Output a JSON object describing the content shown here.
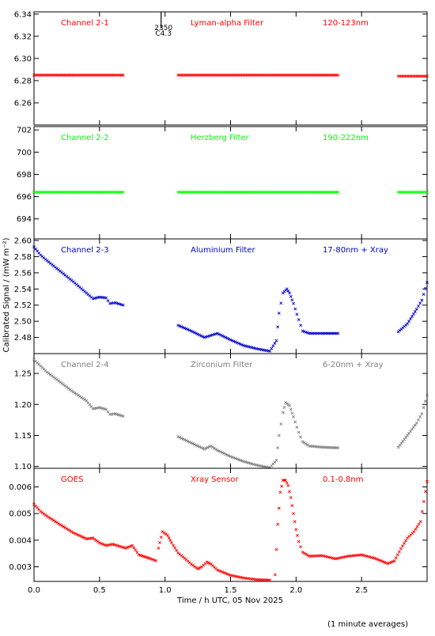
{
  "chart_data": {
    "type": "scatter",
    "xlabel": "Time / h UTC, 05 Nov 2025",
    "ylabel": "Calibrated Signal / (mW m⁻²)",
    "footnote": "(1 minute averages)",
    "xlim": [
      0,
      3.0
    ],
    "xticks": [
      "0.0",
      "0.5",
      "1.0",
      "1.5",
      "2.0",
      "2.5"
    ],
    "top_marker": {
      "x": 0.97,
      "label1": "2350",
      "label2": "C4.3"
    },
    "panels": [
      {
        "channel": "Channel 2-1",
        "filter": "Lyman-alpha Filter",
        "band": "120-123nm",
        "color": "#ff0000",
        "ylim": [
          6.24,
          6.342
        ],
        "yticks": [
          "6.26",
          "6.28",
          "6.30",
          "6.32",
          "6.34"
        ],
        "segments": [
          {
            "x": [
              0.0,
              0.68
            ],
            "y": [
              6.285,
              6.285
            ]
          },
          {
            "x": [
              1.1,
              2.32
            ],
            "y": [
              6.285,
              6.285
            ]
          },
          {
            "x": [
              2.78,
              3.0
            ],
            "y": [
              6.284,
              6.284
            ]
          }
        ]
      },
      {
        "channel": "Channel 2-2",
        "filter": "Herzberg Filter",
        "band": "190-222nm",
        "color": "#00ff00",
        "ylim": [
          692.2,
          702.3
        ],
        "yticks": [
          "694",
          "696",
          "698",
          "700",
          "702"
        ],
        "segments": [
          {
            "x": [
              0.0,
              0.68
            ],
            "y": [
              696.4,
              696.4
            ]
          },
          {
            "x": [
              1.1,
              2.32
            ],
            "y": [
              696.4,
              696.4
            ]
          },
          {
            "x": [
              2.78,
              3.0
            ],
            "y": [
              696.4,
              696.4
            ]
          }
        ]
      },
      {
        "channel": "Channel 2-3",
        "filter": "Aluminium Filter",
        "band": "17-80nm + Xray",
        "color": "#0000cc",
        "ylim": [
          2.46,
          2.602
        ],
        "yticks": [
          "2.48",
          "2.50",
          "2.52",
          "2.54",
          "2.56",
          "2.58",
          "2.60"
        ],
        "segments": [
          {
            "x": [
              0.0,
              0.05,
              0.1,
              0.2,
              0.3,
              0.4,
              0.45,
              0.5,
              0.55,
              0.58,
              0.62,
              0.68
            ],
            "y": [
              2.592,
              2.582,
              2.575,
              2.562,
              2.549,
              2.535,
              2.528,
              2.53,
              2.529,
              2.522,
              2.523,
              2.52
            ]
          },
          {
            "x": [
              1.1,
              1.2,
              1.3,
              1.4,
              1.5,
              1.6,
              1.7,
              1.8,
              1.85,
              1.87,
              1.9,
              1.93,
              1.95,
              1.98,
              2.02,
              2.05,
              2.1,
              2.2,
              2.32
            ],
            "y": [
              2.495,
              2.488,
              2.48,
              2.485,
              2.477,
              2.47,
              2.466,
              2.463,
              2.476,
              2.51,
              2.535,
              2.54,
              2.535,
              2.522,
              2.502,
              2.488,
              2.485,
              2.485,
              2.485
            ]
          },
          {
            "x": [
              2.78,
              2.85,
              2.92,
              2.96,
              3.0
            ],
            "y": [
              2.487,
              2.497,
              2.515,
              2.526,
              2.548
            ]
          }
        ]
      },
      {
        "channel": "Channel 2-4",
        "filter": "Zirconium Filter",
        "band": "6-20nm + Xray",
        "color": "#7f7f7f",
        "ylim": [
          1.097,
          1.282
        ],
        "yticks": [
          "1.10",
          "1.15",
          "1.20",
          "1.25"
        ],
        "segments": [
          {
            "x": [
              0.0,
              0.05,
              0.1,
              0.2,
              0.3,
              0.4,
              0.45,
              0.5,
              0.55,
              0.58,
              0.62,
              0.68
            ],
            "y": [
              1.272,
              1.262,
              1.252,
              1.236,
              1.22,
              1.206,
              1.193,
              1.195,
              1.192,
              1.184,
              1.185,
              1.181
            ]
          },
          {
            "x": [
              1.1,
              1.2,
              1.3,
              1.35,
              1.4,
              1.5,
              1.6,
              1.7,
              1.8,
              1.85,
              1.87,
              1.9,
              1.92,
              1.95,
              1.98,
              2.02,
              2.05,
              2.1,
              2.2,
              2.32
            ],
            "y": [
              1.148,
              1.138,
              1.128,
              1.133,
              1.126,
              1.116,
              1.108,
              1.102,
              1.098,
              1.11,
              1.15,
              1.187,
              1.203,
              1.198,
              1.18,
              1.155,
              1.14,
              1.133,
              1.131,
              1.13
            ]
          },
          {
            "x": [
              2.78,
              2.85,
              2.92,
              2.96,
              3.0
            ],
            "y": [
              1.131,
              1.15,
              1.17,
              1.185,
              1.215
            ]
          }
        ]
      },
      {
        "channel": "GOES",
        "filter": "Xray Sensor",
        "band": "0.1-0.8nm",
        "color": "#ff0000",
        "ylim": [
          0.00245,
          0.0067
        ],
        "yticks": [
          "0.003",
          "0.004",
          "0.005",
          "0.006"
        ],
        "segments": [
          {
            "x": [
              0.0,
              0.05,
              0.1,
              0.2,
              0.3,
              0.4,
              0.45,
              0.5,
              0.55,
              0.6,
              0.7,
              0.75,
              0.8,
              0.88,
              0.93
            ],
            "y": [
              0.00535,
              0.00508,
              0.0049,
              0.00458,
              0.00428,
              0.00405,
              0.00408,
              0.0039,
              0.0038,
              0.00385,
              0.0037,
              0.0038,
              0.00345,
              0.00332,
              0.00323
            ]
          },
          {
            "x": [
              0.95,
              0.98,
              1.02,
              1.05,
              1.1,
              1.15,
              1.2,
              1.25,
              1.28,
              1.32,
              1.35,
              1.4,
              1.5,
              1.6,
              1.7,
              1.8
            ],
            "y": [
              0.0037,
              0.00432,
              0.00418,
              0.0039,
              0.00352,
              0.00332,
              0.0031,
              0.00292,
              0.003,
              0.00318,
              0.0031,
              0.00288,
              0.00268,
              0.00258,
              0.00252,
              0.0025
            ]
          },
          {
            "x": [
              1.84,
              1.86,
              1.88,
              1.9,
              1.92,
              1.94,
              1.96,
              1.98,
              2.0,
              2.02,
              2.05,
              2.1,
              2.2,
              2.3,
              2.4,
              2.5,
              2.6,
              2.7,
              2.75,
              2.8,
              2.85,
              2.9,
              2.95,
              3.0
            ],
            "y": [
              0.0027,
              0.0046,
              0.0058,
              0.00625,
              0.00625,
              0.00605,
              0.0056,
              0.005,
              0.0044,
              0.00395,
              0.00355,
              0.0034,
              0.00342,
              0.0033,
              0.0034,
              0.00345,
              0.00332,
              0.00312,
              0.00322,
              0.00368,
              0.00408,
              0.00432,
              0.0047,
              0.0062
            ]
          }
        ]
      }
    ]
  }
}
